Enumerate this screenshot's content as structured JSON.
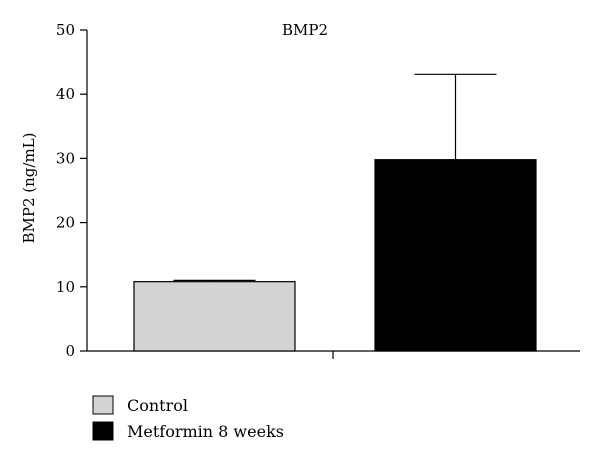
{
  "chart_data": {
    "type": "bar",
    "title": "BMP2",
    "xlabel": "",
    "ylabel": "BMP2 (ng/mL)",
    "ylim": [
      0,
      50
    ],
    "yticks": [
      0,
      10,
      20,
      30,
      40,
      50
    ],
    "grid": false,
    "legend_position": "bottom-left",
    "series": [
      {
        "name": "Control",
        "value": 10.8,
        "error": 0.2,
        "color": "#d3d3d3"
      },
      {
        "name": "Metformin 8 weeks",
        "value": 29.8,
        "error": 13.3,
        "color": "#000000"
      }
    ]
  }
}
